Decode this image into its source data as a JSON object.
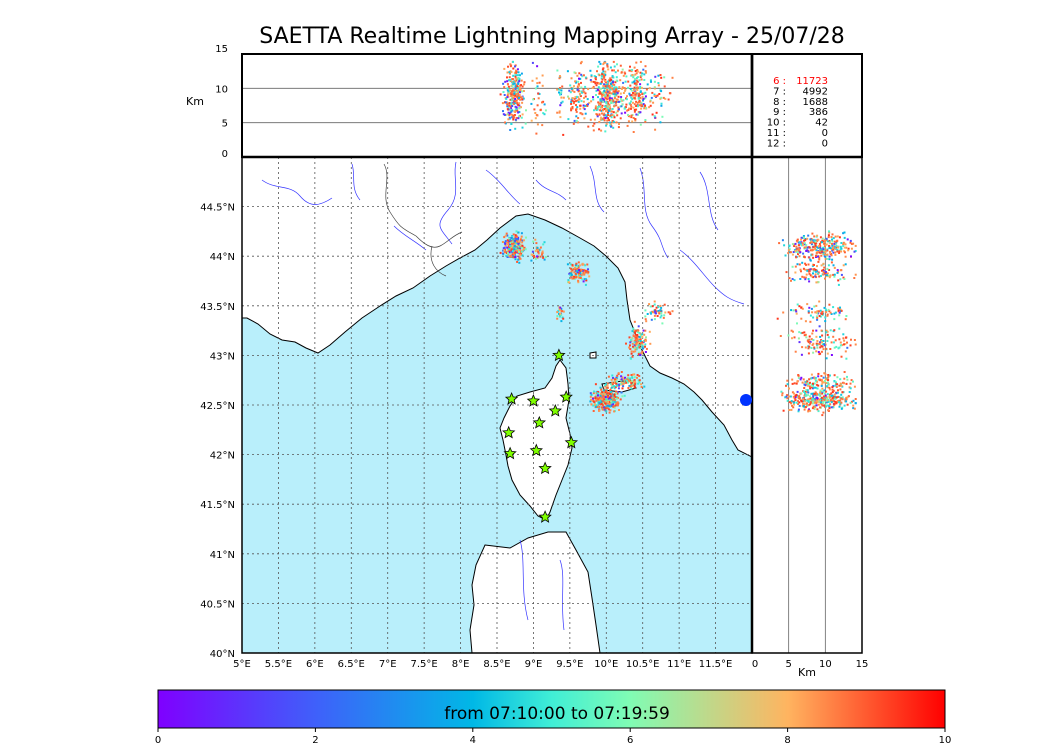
{
  "title": "SAETTA Realtime Lightning Mapping Array - 25/07/28",
  "colors": {
    "sea": "#b9effb",
    "land": "#ffffff",
    "river": "#3333ff",
    "border": "#444444",
    "coast": "#000000",
    "station_fill": "#7fff00",
    "highlight": "#ff0000"
  },
  "chart_data": [
    {
      "type": "scatter",
      "panel": "map",
      "xticks": [
        "5°E",
        "5.5°E",
        "6°E",
        "6.5°E",
        "7°E",
        "7.5°E",
        "8°E",
        "8.5°E",
        "9°E",
        "9.5°E",
        "10°E",
        "10.5°E",
        "11°E",
        "11.5°E"
      ],
      "yticks": [
        "40°N",
        "40.5°N",
        "41°N",
        "41.5°N",
        "42°N",
        "42.5°N",
        "43°N",
        "43.5°N",
        "44°N",
        "44.5°N"
      ],
      "xlim": [
        5,
        12
      ],
      "ylim": [
        40,
        45
      ],
      "grid": true,
      "stations": [
        {
          "lon": 9.35,
          "lat": 43.0
        },
        {
          "lon": 8.7,
          "lat": 42.56
        },
        {
          "lon": 9.0,
          "lat": 42.54
        },
        {
          "lon": 9.45,
          "lat": 42.58
        },
        {
          "lon": 9.3,
          "lat": 42.44
        },
        {
          "lon": 9.08,
          "lat": 42.32
        },
        {
          "lon": 8.66,
          "lat": 42.22
        },
        {
          "lon": 9.52,
          "lat": 42.12
        },
        {
          "lon": 8.68,
          "lat": 42.01
        },
        {
          "lon": 9.04,
          "lat": 42.04
        },
        {
          "lon": 9.16,
          "lat": 41.86
        },
        {
          "lon": 9.16,
          "lat": 41.37
        }
      ],
      "clusters": [
        {
          "lon": 8.72,
          "lat": 44.1,
          "n": 260,
          "sx": 0.07,
          "sy": 0.06
        },
        {
          "lon": 9.05,
          "lat": 44.05,
          "n": 35,
          "sx": 0.05,
          "sy": 0.05
        },
        {
          "lon": 9.6,
          "lat": 43.85,
          "n": 110,
          "sx": 0.07,
          "sy": 0.05
        },
        {
          "lon": 9.35,
          "lat": 43.45,
          "n": 25,
          "sx": 0.02,
          "sy": 0.04
        },
        {
          "lon": 10.7,
          "lat": 43.45,
          "n": 50,
          "sx": 0.08,
          "sy": 0.05
        },
        {
          "lon": 10.42,
          "lat": 43.15,
          "n": 120,
          "sx": 0.06,
          "sy": 0.07
        },
        {
          "lon": 10.25,
          "lat": 42.75,
          "n": 110,
          "sx": 0.12,
          "sy": 0.04
        },
        {
          "lon": 9.98,
          "lat": 42.57,
          "n": 330,
          "sx": 0.09,
          "sy": 0.06
        }
      ]
    },
    {
      "type": "scatter",
      "panel": "longitude-altitude",
      "ylabel": "Km",
      "yticks": [
        "0",
        "5",
        "10",
        "15"
      ],
      "ylim": [
        0,
        15
      ],
      "grid": true,
      "legend": [
        {
          "label": "6 :",
          "value": "11723",
          "highlight": true
        },
        {
          "label": "7 :",
          "value": "4992"
        },
        {
          "label": "8 :",
          "value": "1688"
        },
        {
          "label": "9 :",
          "value": "386"
        },
        {
          "label": "10 :",
          "value": "42"
        },
        {
          "label": "11 :",
          "value": "0"
        },
        {
          "label": "12 :",
          "value": "0"
        }
      ]
    },
    {
      "type": "scatter",
      "panel": "latitude-altitude",
      "xlabel": "Km",
      "xticks": [
        "0",
        "5",
        "10",
        "15"
      ],
      "xlim": [
        0,
        15
      ],
      "grid": true
    },
    {
      "type": "colorbar",
      "label": "from 07:10:00 to 07:19:59",
      "ticks": [
        "0",
        "2",
        "4",
        "6",
        "8",
        "10"
      ],
      "range": [
        0,
        10
      ]
    }
  ]
}
